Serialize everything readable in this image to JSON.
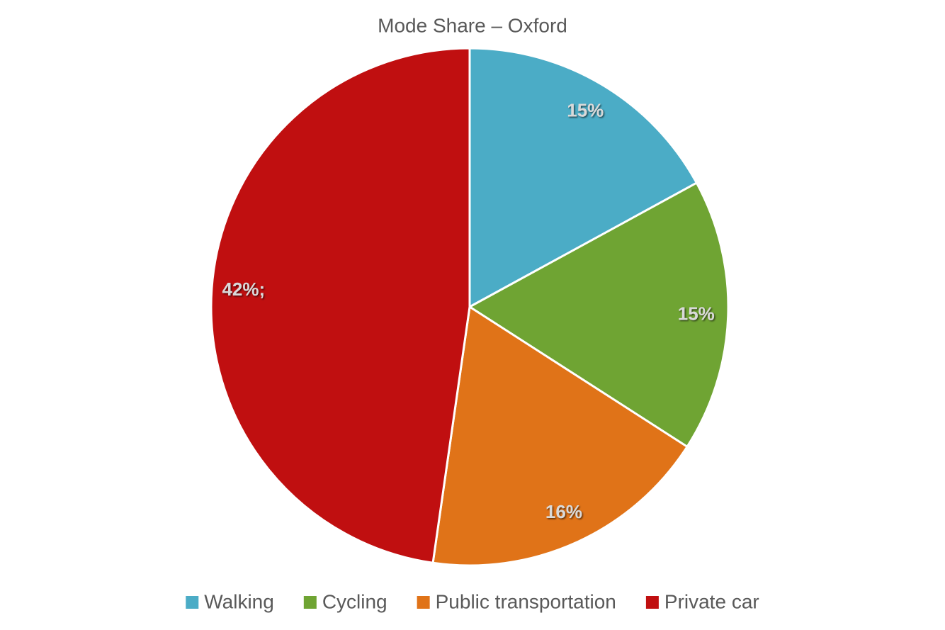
{
  "chart_data": {
    "type": "pie",
    "title": "Mode Share – Oxford",
    "categories": [
      "Walking",
      "Cycling",
      "Public transportation",
      "Private car"
    ],
    "values": [
      15,
      15,
      16,
      42
    ],
    "value_labels": [
      "15%",
      "15%",
      "16%",
      "42%;"
    ],
    "colors": [
      "#4bacc6",
      "#6fa433",
      "#e07318",
      "#c00f10"
    ],
    "legend": "bottom"
  }
}
